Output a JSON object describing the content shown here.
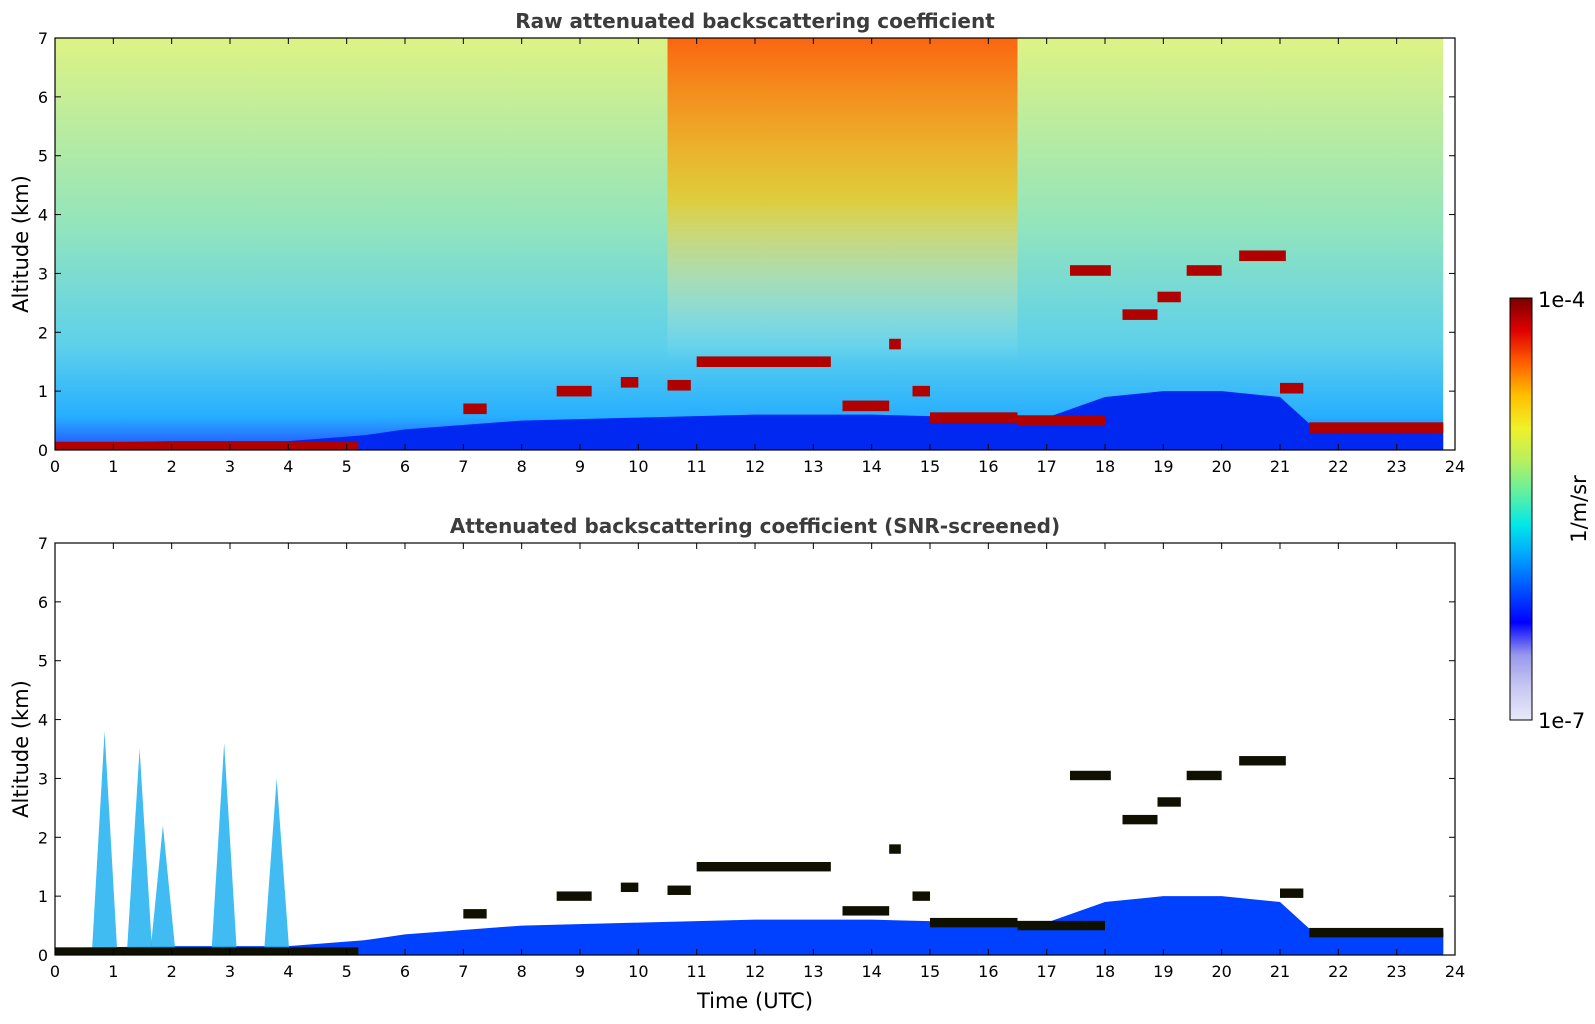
{
  "chart_data": [
    {
      "type": "heatmap",
      "title": "Raw attenuated backscattering coefficient",
      "xlabel": "",
      "ylabel": "Altitude (km)",
      "xlim": [
        0,
        24
      ],
      "ylim": [
        0,
        7
      ],
      "xticks": [
        "0",
        "1",
        "2",
        "3",
        "4",
        "5",
        "6",
        "7",
        "8",
        "9",
        "10",
        "11",
        "12",
        "13",
        "14",
        "15",
        "16",
        "17",
        "18",
        "19",
        "20",
        "21",
        "22",
        "23",
        "24"
      ],
      "yticks": [
        "0",
        "1",
        "2",
        "3",
        "4",
        "5",
        "6",
        "7"
      ],
      "features": {
        "boundary_layer": [
          [
            0,
            0.12
          ],
          [
            2,
            0.15
          ],
          [
            4,
            0.15
          ],
          [
            5.3,
            0.25
          ],
          [
            6,
            0.35
          ],
          [
            8,
            0.5
          ],
          [
            10,
            0.55
          ],
          [
            12,
            0.6
          ],
          [
            14,
            0.6
          ],
          [
            16,
            0.55
          ],
          [
            17,
            0.55
          ],
          [
            18,
            0.9
          ],
          [
            19,
            1.0
          ],
          [
            20,
            1.0
          ],
          [
            21,
            0.9
          ],
          [
            21.5,
            0.45
          ],
          [
            22,
            0.4
          ],
          [
            23,
            0.4
          ],
          [
            23.8,
            0.4
          ]
        ],
        "cloud_layers": [
          {
            "x_start": 0.0,
            "x_end": 5.2,
            "altitude": 0.05
          },
          {
            "x_start": 7.0,
            "x_end": 7.4,
            "altitude": 0.7
          },
          {
            "x_start": 8.6,
            "x_end": 9.2,
            "altitude": 1.0
          },
          {
            "x_start": 9.7,
            "x_end": 10.0,
            "altitude": 1.15
          },
          {
            "x_start": 10.5,
            "x_end": 10.9,
            "altitude": 1.1
          },
          {
            "x_start": 11.0,
            "x_end": 13.3,
            "altitude": 1.5
          },
          {
            "x_start": 13.5,
            "x_end": 14.3,
            "altitude": 0.75
          },
          {
            "x_start": 14.3,
            "x_end": 14.5,
            "altitude": 1.8
          },
          {
            "x_start": 14.7,
            "x_end": 15.0,
            "altitude": 1.0
          },
          {
            "x_start": 15.0,
            "x_end": 16.5,
            "altitude": 0.55
          },
          {
            "x_start": 16.5,
            "x_end": 18.0,
            "altitude": 0.5
          },
          {
            "x_start": 17.4,
            "x_end": 18.1,
            "altitude": 3.05
          },
          {
            "x_start": 18.3,
            "x_end": 18.9,
            "altitude": 2.3
          },
          {
            "x_start": 18.9,
            "x_end": 19.3,
            "altitude": 2.6
          },
          {
            "x_start": 19.4,
            "x_end": 20.0,
            "altitude": 3.05
          },
          {
            "x_start": 20.3,
            "x_end": 21.1,
            "altitude": 3.3
          },
          {
            "x_start": 21.0,
            "x_end": 21.4,
            "altitude": 1.05
          },
          {
            "x_start": 21.5,
            "x_end": 23.8,
            "altitude": 0.38
          }
        ]
      }
    },
    {
      "type": "heatmap",
      "title": "Attenuated backscattering coefficient (SNR-screened)",
      "xlabel": "Time (UTC)",
      "ylabel": "Altitude (km)",
      "xlim": [
        0,
        24
      ],
      "ylim": [
        0,
        7
      ],
      "xticks": [
        "0",
        "1",
        "2",
        "3",
        "4",
        "5",
        "6",
        "7",
        "8",
        "9",
        "10",
        "11",
        "12",
        "13",
        "14",
        "15",
        "16",
        "17",
        "18",
        "19",
        "20",
        "21",
        "22",
        "23",
        "24"
      ],
      "yticks": [
        "0",
        "1",
        "2",
        "3",
        "4",
        "5",
        "6",
        "7"
      ],
      "features": {
        "plumes": [
          {
            "x": 0.85,
            "top_altitude": 3.8
          },
          {
            "x": 1.45,
            "top_altitude": 3.5
          },
          {
            "x": 1.85,
            "top_altitude": 2.2
          },
          {
            "x": 2.9,
            "top_altitude": 3.6
          },
          {
            "x": 3.8,
            "top_altitude": 3.0
          }
        ]
      }
    }
  ],
  "colorbar": {
    "label": "1/m/sr",
    "max_label": "1e-4",
    "min_label": "1e-7",
    "scale": "log",
    "colors": [
      "#e8e8f8",
      "#c8c8f2",
      "#9898ec",
      "#0000ff",
      "#0050ff",
      "#00a0ff",
      "#00e8e8",
      "#60f0a0",
      "#b8f060",
      "#f0f028",
      "#ffc000",
      "#ff6000",
      "#e00000",
      "#7a0000"
    ]
  }
}
